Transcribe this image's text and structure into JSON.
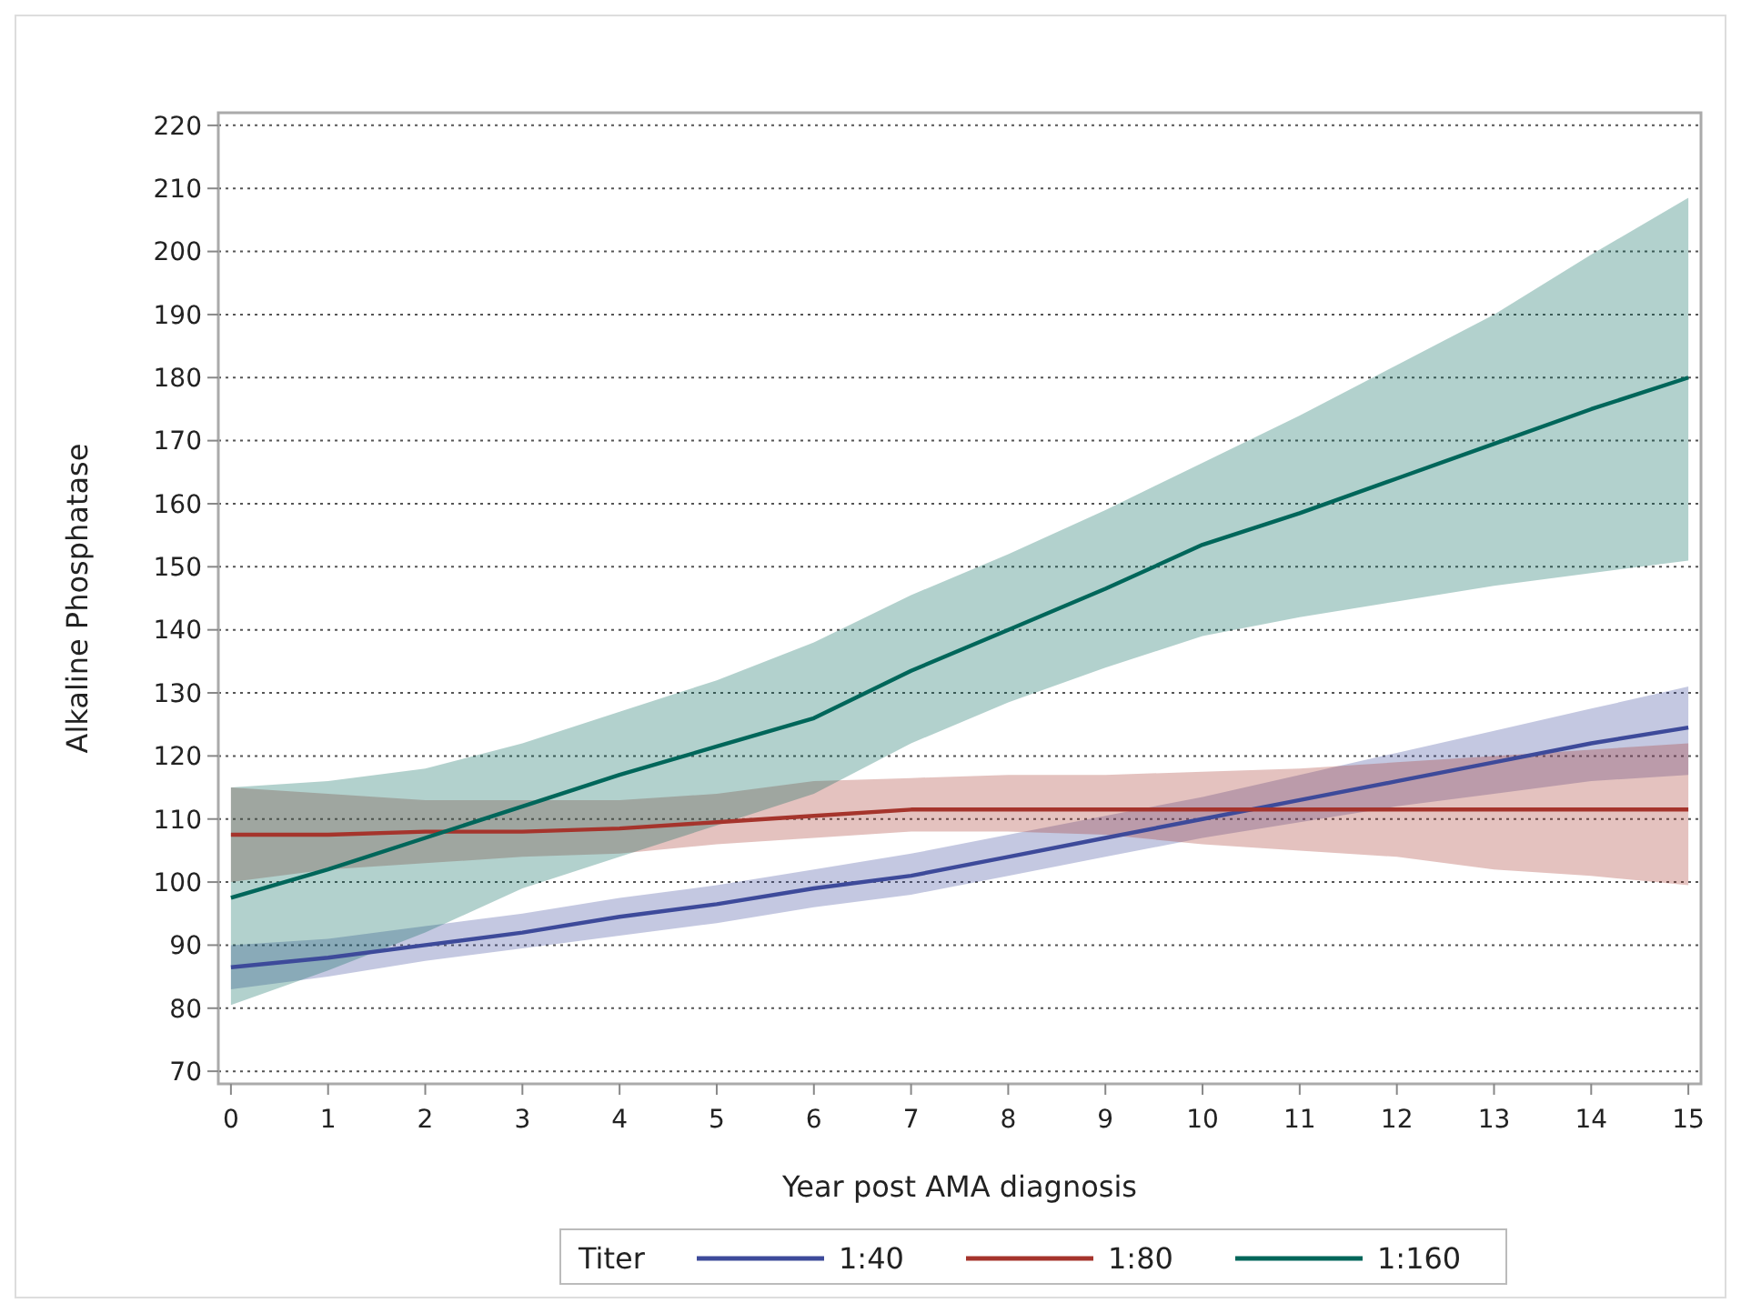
{
  "chart_data": {
    "type": "line",
    "xlabel": "Year post AMA diagnosis",
    "ylabel": "Alkaline Phosphatase",
    "legend_title": "Titer",
    "x": [
      0,
      1,
      2,
      3,
      4,
      5,
      6,
      7,
      8,
      9,
      10,
      11,
      12,
      13,
      14,
      15
    ],
    "series": [
      {
        "name": "1:40",
        "color": "#3d4a9a",
        "values": [
          86.5,
          88,
          90,
          92,
          94.5,
          96.5,
          99,
          101,
          104,
          107,
          110,
          113,
          116,
          119,
          122,
          124.5
        ],
        "lower": [
          83,
          85,
          87.5,
          89.5,
          91.5,
          93.5,
          96,
          98,
          101,
          104,
          107,
          109.5,
          112,
          114,
          116,
          117
        ],
        "upper": [
          90,
          91,
          93,
          95,
          97.5,
          99.5,
          102,
          104.5,
          107.5,
          110.5,
          113.5,
          117,
          120.5,
          124,
          127.5,
          131
        ]
      },
      {
        "name": "1:80",
        "color": "#a5342c",
        "values": [
          107.5,
          107.5,
          108,
          108,
          108.5,
          109.5,
          110.5,
          111.5,
          111.5,
          111.5,
          111.5,
          111.5,
          111.5,
          111.5,
          111.5,
          111.5
        ],
        "lower": [
          100,
          102,
          103,
          104,
          104.5,
          106,
          107,
          108,
          108,
          107.5,
          106,
          105,
          104,
          102,
          101,
          99.5
        ],
        "upper": [
          115,
          114,
          113,
          113,
          113,
          114,
          116,
          116.5,
          117,
          117,
          117.5,
          118,
          119,
          120,
          121,
          122
        ]
      },
      {
        "name": "1:160",
        "color": "#00665a",
        "values": [
          97.5,
          102,
          107,
          112,
          117,
          121.5,
          126,
          133.5,
          140,
          146.5,
          153.5,
          158.5,
          164,
          169.5,
          175,
          180
        ],
        "lower": [
          80.5,
          86,
          92,
          99,
          104,
          109,
          114,
          122,
          128.5,
          134,
          139,
          142,
          144.5,
          147,
          149,
          151
        ],
        "upper": [
          115,
          116,
          118,
          122,
          127,
          132,
          138,
          145.5,
          152,
          159,
          166.5,
          174,
          182,
          190,
          199.5,
          208.5
        ]
      }
    ],
    "xlim": [
      -0.13,
      15.13
    ],
    "xticks": [
      0,
      1,
      2,
      3,
      4,
      5,
      6,
      7,
      8,
      9,
      10,
      11,
      12,
      13,
      14,
      15
    ],
    "ylim": [
      68,
      222
    ],
    "yticks": [
      70,
      80,
      90,
      100,
      110,
      120,
      130,
      140,
      150,
      160,
      170,
      180,
      190,
      200,
      210,
      220
    ],
    "grid": "y",
    "legend": "bottom",
    "line_style": "solid",
    "marker": "none"
  }
}
